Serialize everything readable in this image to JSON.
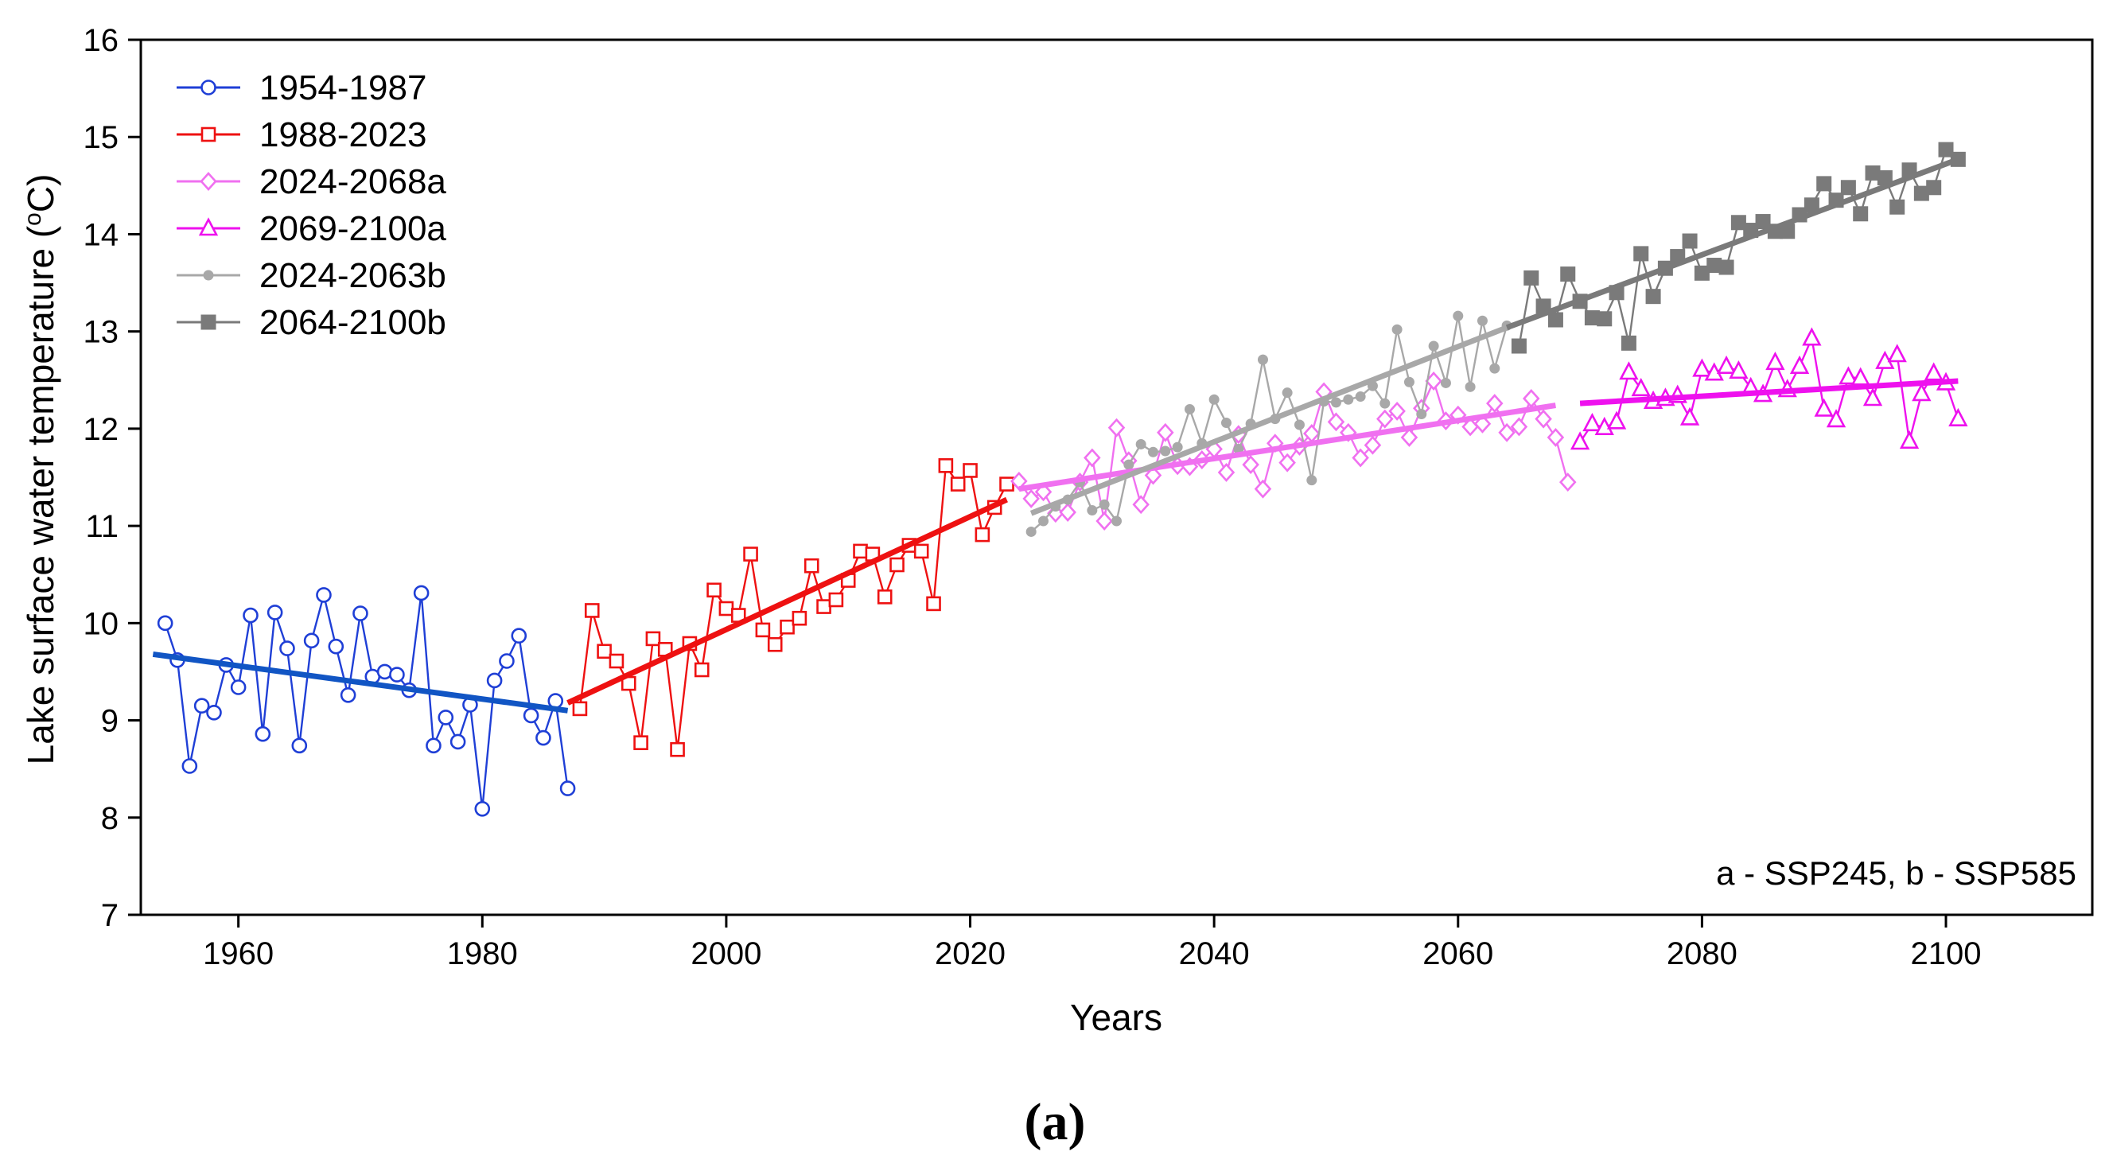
{
  "chart_data": {
    "type": "line",
    "title": "",
    "xlabel": "Years",
    "ylabel": "Lake surface water temperature (",
    "ylabel_sup": "o",
    "ylabel_unit": "C)",
    "xlim": [
      1952,
      2112
    ],
    "ylim": [
      7,
      16
    ],
    "xticks": [
      1960,
      1980,
      2000,
      2020,
      2040,
      2060,
      2080,
      2100
    ],
    "yticks": [
      7,
      8,
      9,
      10,
      11,
      12,
      13,
      14,
      15,
      16
    ],
    "legend_position": "top-left",
    "annotation": "a - SSP245, b - SSP585",
    "panel_label": "(a)",
    "series": [
      {
        "name": "1954-1987",
        "color": "#1f3fd6",
        "marker": "circle-open",
        "trend_color": "#1155c4",
        "trend": [
          [
            1953,
            9.68
          ],
          [
            1987,
            9.1
          ]
        ],
        "x": [
          1954,
          1955,
          1956,
          1957,
          1958,
          1959,
          1960,
          1961,
          1962,
          1963,
          1964,
          1965,
          1966,
          1967,
          1968,
          1969,
          1970,
          1971,
          1972,
          1973,
          1974,
          1975,
          1976,
          1977,
          1978,
          1979,
          1980,
          1981,
          1982,
          1983,
          1984,
          1985,
          1986,
          1987
        ],
        "y": [
          10.0,
          9.62,
          8.53,
          9.15,
          9.08,
          9.57,
          9.34,
          10.08,
          8.86,
          10.11,
          9.74,
          8.74,
          9.82,
          10.29,
          9.76,
          9.26,
          10.1,
          9.45,
          9.5,
          9.47,
          9.31,
          10.31,
          8.74,
          9.03,
          8.78,
          9.16,
          8.09,
          9.41,
          9.61,
          9.87,
          9.05,
          8.82,
          9.2,
          8.3
        ]
      },
      {
        "name": "1988-2023",
        "color": "#ee1111",
        "marker": "square-open",
        "trend_color": "#ee1111",
        "trend": [
          [
            1987,
            9.18
          ],
          [
            2023,
            11.27
          ]
        ],
        "x": [
          1988,
          1989,
          1990,
          1991,
          1992,
          1993,
          1994,
          1995,
          1996,
          1997,
          1998,
          1999,
          2000,
          2001,
          2002,
          2003,
          2004,
          2005,
          2006,
          2007,
          2008,
          2009,
          2010,
          2011,
          2012,
          2013,
          2014,
          2015,
          2016,
          2017,
          2018,
          2019,
          2020,
          2021,
          2022,
          2023
        ],
        "y": [
          9.12,
          10.13,
          9.71,
          9.61,
          9.38,
          8.77,
          9.84,
          9.73,
          8.7,
          9.79,
          9.52,
          10.34,
          10.15,
          10.08,
          10.71,
          9.93,
          9.78,
          9.96,
          10.05,
          10.59,
          10.17,
          10.24,
          10.44,
          10.74,
          10.71,
          10.27,
          10.6,
          10.8,
          10.74,
          10.2,
          11.62,
          11.43,
          11.57,
          10.91,
          11.19,
          11.43
        ]
      },
      {
        "name": "2024-2068a",
        "color": "#f070f0",
        "marker": "diamond-open",
        "trend_color": "#f070f0",
        "trend": [
          [
            2024,
            11.38
          ],
          [
            2068,
            12.24
          ]
        ],
        "x": [
          2024,
          2025,
          2026,
          2027,
          2028,
          2029,
          2030,
          2031,
          2032,
          2033,
          2034,
          2035,
          2036,
          2037,
          2038,
          2039,
          2040,
          2041,
          2042,
          2043,
          2044,
          2045,
          2046,
          2047,
          2048,
          2049,
          2050,
          2051,
          2052,
          2053,
          2054,
          2055,
          2056,
          2057,
          2058,
          2059,
          2060,
          2061,
          2062,
          2063,
          2064,
          2065,
          2066,
          2067,
          2068,
          2069
        ],
        "y": [
          11.46,
          11.28,
          11.35,
          11.13,
          11.14,
          11.45,
          11.7,
          11.05,
          12.01,
          11.67,
          11.22,
          11.52,
          11.96,
          11.62,
          11.61,
          11.68,
          11.79,
          11.55,
          11.94,
          11.63,
          11.38,
          11.85,
          11.65,
          11.82,
          11.95,
          12.38,
          12.07,
          11.96,
          11.7,
          11.83,
          12.1,
          12.18,
          11.91,
          12.21,
          12.49,
          12.08,
          12.14,
          12.02,
          12.05,
          12.26,
          11.96,
          12.02,
          12.31,
          12.1,
          11.91,
          11.45
        ]
      },
      {
        "name": "2069-2100a",
        "color": "#ee11ee",
        "marker": "triangle-open",
        "trend_color": "#ee11ee",
        "trend": [
          [
            2070,
            12.26
          ],
          [
            2101,
            12.49
          ]
        ],
        "x": [
          2070,
          2071,
          2072,
          2073,
          2074,
          2075,
          2076,
          2077,
          2078,
          2079,
          2080,
          2081,
          2082,
          2083,
          2084,
          2085,
          2086,
          2087,
          2088,
          2089,
          2090,
          2091,
          2092,
          2093,
          2094,
          2095,
          2096,
          2097,
          2098,
          2099,
          2100,
          2101
        ],
        "y": [
          11.86,
          12.05,
          12.01,
          12.07,
          12.58,
          12.41,
          12.28,
          12.31,
          12.34,
          12.11,
          12.61,
          12.57,
          12.64,
          12.59,
          12.42,
          12.35,
          12.68,
          12.4,
          12.64,
          12.93,
          12.2,
          12.09,
          12.53,
          12.52,
          12.31,
          12.69,
          12.76,
          11.87,
          12.36,
          12.57,
          12.47,
          12.1
        ]
      },
      {
        "name": "2024-2063b",
        "color": "#a8a8a8",
        "marker": "circle-filled-small",
        "trend_color": "#a8a8a8",
        "trend": [
          [
            2025,
            11.13
          ],
          [
            2064,
            13.04
          ]
        ],
        "x": [
          2025,
          2026,
          2027,
          2028,
          2029,
          2030,
          2031,
          2032,
          2033,
          2034,
          2035,
          2036,
          2037,
          2038,
          2039,
          2040,
          2041,
          2042,
          2043,
          2044,
          2045,
          2046,
          2047,
          2048,
          2049,
          2050,
          2051,
          2052,
          2053,
          2054,
          2055,
          2056,
          2057,
          2058,
          2059,
          2060,
          2061,
          2062,
          2063,
          2064
        ],
        "y": [
          10.94,
          11.05,
          11.2,
          11.27,
          11.45,
          11.16,
          11.22,
          11.05,
          11.63,
          11.84,
          11.76,
          11.77,
          11.81,
          12.2,
          11.85,
          12.3,
          12.06,
          11.79,
          12.05,
          12.71,
          12.1,
          12.37,
          12.04,
          11.47,
          12.28,
          12.27,
          12.3,
          12.33,
          12.44,
          12.26,
          13.02,
          12.48,
          12.15,
          12.85,
          12.47,
          13.16,
          12.43,
          13.11,
          12.62,
          13.06
        ]
      },
      {
        "name": "2064-2100b",
        "color": "#7a7a7a",
        "marker": "square-filled",
        "trend_color": "#7a7a7a",
        "trend": [
          [
            2064,
            13.04
          ],
          [
            2101,
            14.77
          ]
        ],
        "x": [
          2065,
          2066,
          2067,
          2068,
          2069,
          2070,
          2071,
          2072,
          2073,
          2074,
          2075,
          2076,
          2077,
          2078,
          2079,
          2080,
          2081,
          2082,
          2083,
          2084,
          2085,
          2086,
          2087,
          2088,
          2089,
          2090,
          2091,
          2092,
          2093,
          2094,
          2095,
          2096,
          2097,
          2098,
          2099,
          2100,
          2101
        ],
        "y": [
          12.85,
          13.55,
          13.26,
          13.12,
          13.59,
          13.31,
          13.14,
          13.13,
          13.4,
          12.88,
          13.8,
          13.36,
          13.65,
          13.77,
          13.93,
          13.6,
          13.68,
          13.66,
          14.12,
          14.04,
          14.13,
          14.03,
          14.03,
          14.2,
          14.3,
          14.52,
          14.35,
          14.48,
          14.21,
          14.63,
          14.58,
          14.28,
          14.66,
          14.42,
          14.48,
          14.87,
          14.77
        ]
      }
    ]
  }
}
